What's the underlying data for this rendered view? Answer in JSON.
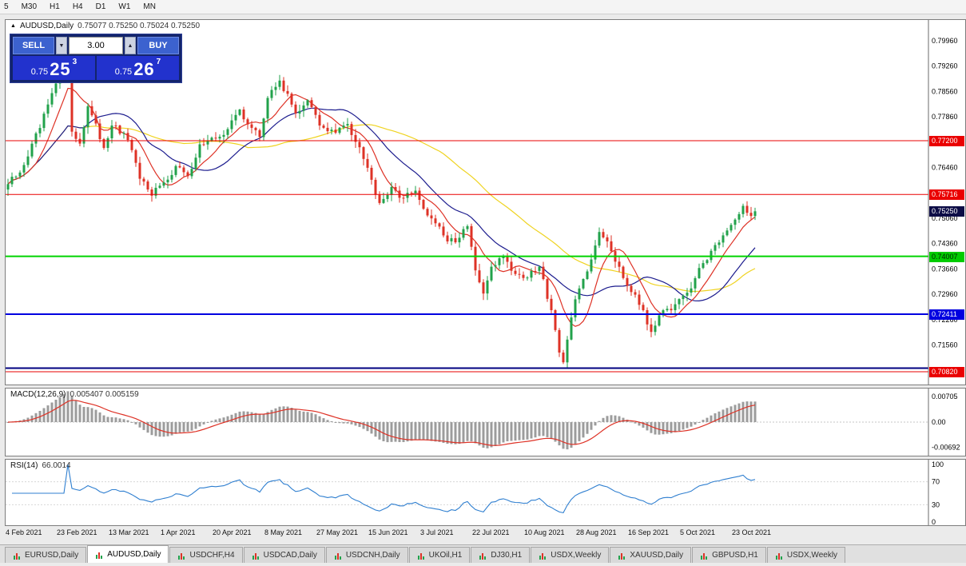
{
  "toolbar": {
    "periods": [
      "5",
      "M30",
      "H1",
      "H4",
      "D1",
      "W1",
      "MN"
    ]
  },
  "chart_header": {
    "symbol": "AUDUSD,Daily",
    "ohlc": "0.75077 0.75250 0.75024 0.75250"
  },
  "trade_panel": {
    "sell_label": "SELL",
    "buy_label": "BUY",
    "volume": "3.00",
    "spin_down": "▼",
    "spin_up": "▲",
    "sell_price_small": "0.75",
    "sell_price_big": "25",
    "sell_price_sup": "3",
    "buy_price_small": "0.75",
    "buy_price_big": "26",
    "buy_price_sup": "7"
  },
  "tabs": {
    "active_index": 1,
    "items": [
      "EURUSD,Daily",
      "AUDUSD,Daily",
      "USDCHF,H4",
      "USDCAD,Daily",
      "USDCNH,Daily",
      "UKOil,H1",
      "DJ30,H1",
      "USDX,Weekly",
      "XAUUSD,Daily",
      "GBPUSD,H1",
      "USDX,Weekly"
    ]
  },
  "chart_data": {
    "type": "candlestick",
    "symbol": "AUDUSD",
    "timeframe": "Daily",
    "price_axis": {
      "top": 0.804,
      "bottom": 0.706,
      "label_start": 0.7996,
      "label_step": 0.007,
      "label_count": 14,
      "decimals": 5
    },
    "colors": {
      "up": "#22a24b",
      "down": "#de3226",
      "bg": "#ffffff",
      "axis_text": "#000000"
    },
    "levels": [
      {
        "price": 0.772,
        "color": "#ea0000",
        "width": 1,
        "badge": "0.77200",
        "badge_bg": "#ea0000",
        "badge_fg": "#ffffff"
      },
      {
        "price": 0.75716,
        "color": "#ea0000",
        "width": 1,
        "badge": "0.75716",
        "badge_bg": "#ea0000",
        "badge_fg": "#ffffff"
      },
      {
        "price": 0.74007,
        "color": "#00d400",
        "width": 2,
        "badge": "0.74007",
        "badge_bg": "#00cc00",
        "badge_fg": "#002200"
      },
      {
        "price": 0.72411,
        "color": "#0000e0",
        "width": 2,
        "badge": "0.72411",
        "badge_bg": "#0000e0",
        "badge_fg": "#ffffff"
      },
      {
        "price": 0.7092,
        "color": "#000080",
        "width": 2,
        "badge": "",
        "badge_bg": "",
        "badge_fg": ""
      },
      {
        "price": 0.7082,
        "color": "#ea0000",
        "width": 1,
        "badge": "0.70820",
        "badge_bg": "#ea0000",
        "badge_fg": "#ffffff"
      }
    ],
    "current_price": {
      "label": "0.75250",
      "price": 0.7525,
      "badge_bg": "#0c0c46",
      "badge_fg": "#ffffff"
    },
    "moving_averages": [
      {
        "period": 45,
        "color": "#efd320"
      },
      {
        "period": 20,
        "color": "#1c1c8e"
      },
      {
        "period": 8,
        "color": "#de3226"
      }
    ],
    "candles": {
      "count": 188,
      "spacing": 5,
      "noise": 0.002,
      "anchors": [
        [
          0,
          0.76
        ],
        [
          3,
          0.7632
        ],
        [
          8,
          0.7755
        ],
        [
          13,
          0.7905
        ],
        [
          15,
          0.7978
        ],
        [
          16,
          0.7745
        ],
        [
          18,
          0.7712
        ],
        [
          20,
          0.7815
        ],
        [
          24,
          0.77
        ],
        [
          26,
          0.7762
        ],
        [
          30,
          0.7722
        ],
        [
          33,
          0.7615
        ],
        [
          36,
          0.7568
        ],
        [
          39,
          0.7605
        ],
        [
          42,
          0.765
        ],
        [
          45,
          0.7622
        ],
        [
          48,
          0.771
        ],
        [
          52,
          0.7726
        ],
        [
          55,
          0.7752
        ],
        [
          58,
          0.7806
        ],
        [
          60,
          0.7765
        ],
        [
          63,
          0.773
        ],
        [
          65,
          0.7838
        ],
        [
          68,
          0.7886
        ],
        [
          72,
          0.7795
        ],
        [
          75,
          0.7832
        ],
        [
          78,
          0.7762
        ],
        [
          82,
          0.7742
        ],
        [
          85,
          0.7766
        ],
        [
          88,
          0.7702
        ],
        [
          91,
          0.7612
        ],
        [
          93,
          0.7548
        ],
        [
          96,
          0.7592
        ],
        [
          99,
          0.7562
        ],
        [
          102,
          0.7582
        ],
        [
          104,
          0.7532
        ],
        [
          107,
          0.7492
        ],
        [
          110,
          0.7442
        ],
        [
          113,
          0.7452
        ],
        [
          115,
          0.7484
        ],
        [
          117,
          0.7362
        ],
        [
          119,
          0.7298
        ],
        [
          121,
          0.7372
        ],
        [
          124,
          0.7402
        ],
        [
          127,
          0.7352
        ],
        [
          130,
          0.7342
        ],
        [
          133,
          0.7372
        ],
        [
          136,
          0.7252
        ],
        [
          138,
          0.7135
        ],
        [
          139,
          0.7108
        ],
        [
          141,
          0.7232
        ],
        [
          143,
          0.7312
        ],
        [
          146,
          0.7392
        ],
        [
          148,
          0.7468
        ],
        [
          150,
          0.7442
        ],
        [
          153,
          0.7372
        ],
        [
          156,
          0.7302
        ],
        [
          159,
          0.7252
        ],
        [
          161,
          0.7192
        ],
        [
          163,
          0.7238
        ],
        [
          166,
          0.7252
        ],
        [
          169,
          0.7292
        ],
        [
          171,
          0.7312
        ],
        [
          174,
          0.7382
        ],
        [
          177,
          0.7432
        ],
        [
          180,
          0.7472
        ],
        [
          182,
          0.7502
        ],
        [
          184,
          0.754
        ],
        [
          186,
          0.7512
        ],
        [
          187,
          0.7525
        ]
      ]
    },
    "x_ticks": [
      [
        0,
        "4 Feb 2021"
      ],
      [
        13,
        "23 Feb 2021"
      ],
      [
        26,
        "13 Mar 2021"
      ],
      [
        39,
        "1 Apr 2021"
      ],
      [
        52,
        "20 Apr 2021"
      ],
      [
        65,
        "8 May 2021"
      ],
      [
        78,
        "27 May 2021"
      ],
      [
        91,
        "15 Jun 2021"
      ],
      [
        104,
        "3 Jul 2021"
      ],
      [
        117,
        "22 Jul 2021"
      ],
      [
        130,
        "10 Aug 2021"
      ],
      [
        143,
        "28 Aug 2021"
      ],
      [
        156,
        "16 Sep 2021"
      ],
      [
        169,
        "5 Oct 2021"
      ],
      [
        182,
        "23 Oct 2021"
      ]
    ],
    "macd": {
      "label": "MACD(12,26,9)",
      "values": "0.005407 0.005159",
      "fast": 12,
      "slow": 26,
      "signal": 9,
      "axis_labels": [
        "0.00705",
        "0.00",
        "-0.00692"
      ],
      "value_range": 0.0075,
      "hist_color": "#9c9c9c",
      "signal_color": "#de3226"
    },
    "rsi": {
      "label": "RSI(14)",
      "value": "66.0014",
      "period": 14,
      "axis_labels": [
        100,
        70,
        30,
        0
      ],
      "guide_levels": [
        70,
        30
      ],
      "color": "#2f7fd0"
    }
  }
}
